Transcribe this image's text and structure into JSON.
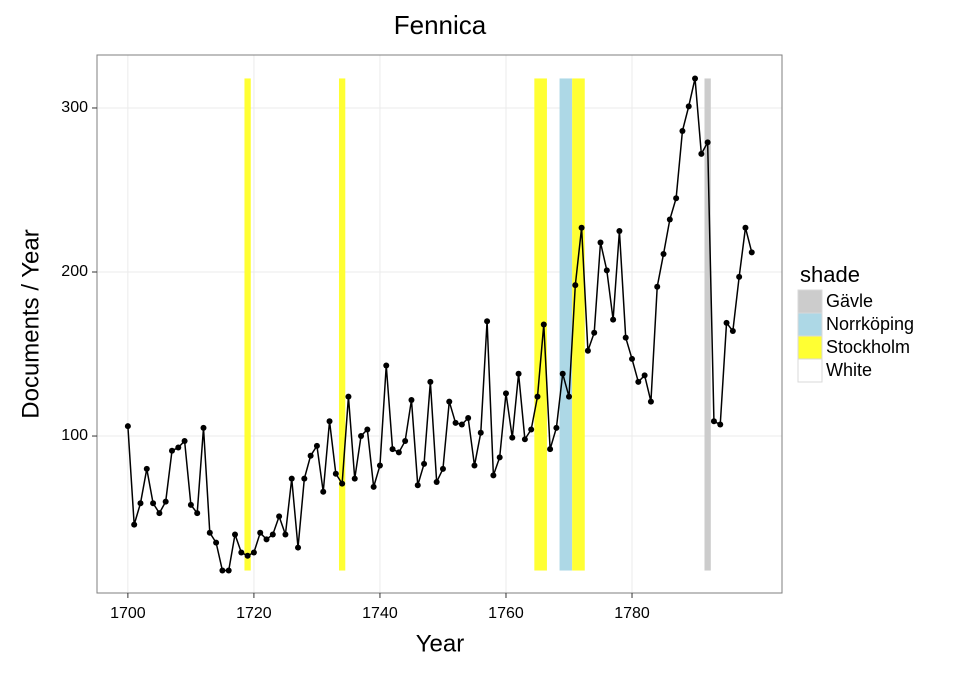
{
  "chart_data": {
    "type": "line",
    "title": "Fennica",
    "x_label": "Year",
    "y_label": "Documents / Year",
    "x": [
      1700,
      1701,
      1702,
      1703,
      1704,
      1705,
      1706,
      1707,
      1708,
      1709,
      1710,
      1711,
      1712,
      1713,
      1714,
      1715,
      1716,
      1717,
      1718,
      1719,
      1720,
      1721,
      1722,
      1723,
      1724,
      1725,
      1726,
      1727,
      1728,
      1729,
      1730,
      1731,
      1732,
      1733,
      1734,
      1735,
      1736,
      1737,
      1738,
      1739,
      1740,
      1741,
      1742,
      1743,
      1744,
      1745,
      1746,
      1747,
      1748,
      1749,
      1750,
      1751,
      1752,
      1753,
      1754,
      1755,
      1756,
      1757,
      1758,
      1759,
      1760,
      1761,
      1762,
      1763,
      1764,
      1765,
      1766,
      1767,
      1768,
      1769,
      1770,
      1771,
      1772,
      1773,
      1774,
      1775,
      1776,
      1777,
      1778,
      1779,
      1780,
      1781,
      1782,
      1783,
      1784,
      1785,
      1786,
      1787,
      1788,
      1789,
      1790,
      1791,
      1792,
      1793,
      1794,
      1795,
      1796,
      1797,
      1798,
      1799
    ],
    "series": [
      {
        "color": "#000000",
        "values": [
          106,
          46,
          59,
          80,
          59,
          53,
          60,
          91,
          93,
          97,
          58,
          53,
          105,
          41,
          35,
          18,
          18,
          40,
          29,
          27,
          29,
          41,
          37,
          40,
          51,
          40,
          74,
          32,
          74,
          88,
          94,
          66,
          109,
          77,
          71,
          124,
          74,
          100,
          104,
          69,
          82,
          143,
          92,
          90,
          97,
          122,
          70,
          83,
          133,
          72,
          80,
          121,
          108,
          107,
          111,
          82,
          102,
          170,
          76,
          87,
          126,
          99,
          138,
          98,
          104,
          124,
          168,
          92,
          105,
          138,
          124,
          192,
          227,
          152,
          163,
          218,
          201,
          171,
          225,
          160,
          147,
          133,
          137,
          121,
          191,
          211,
          232,
          245,
          286,
          301,
          318,
          272,
          279,
          109,
          107,
          169,
          164,
          197,
          227,
          212
        ]
      }
    ],
    "legend_title": "shade",
    "legend": [
      {
        "name": "Gävle",
        "color": "#cccccc"
      },
      {
        "name": "Norrköping",
        "color": "#add8e6"
      },
      {
        "name": "Stockholm",
        "color": "#ffff33"
      },
      {
        "name": "White",
        "color": "#ffffff"
      }
    ],
    "shading": [
      {
        "shade": "Stockholm",
        "x": [
          1718.5,
          1719.5
        ],
        "y": [
          18,
          318
        ]
      },
      {
        "shade": "Stockholm",
        "x": [
          1733.5,
          1734.5
        ],
        "y": [
          18,
          318
        ]
      },
      {
        "shade": "Stockholm",
        "x": [
          1764.5,
          1766.5
        ],
        "y": [
          18,
          318
        ]
      },
      {
        "shade": "Norrköping",
        "x": [
          1768.5,
          1770.5
        ],
        "y": [
          18,
          318
        ]
      },
      {
        "shade": "Stockholm",
        "x": [
          1770.5,
          1772.5
        ],
        "y": [
          18,
          318
        ]
      },
      {
        "shade": "Gävle",
        "x": [
          1791.5,
          1792.5
        ],
        "y": [
          18,
          318
        ]
      }
    ],
    "xlim": [
      1695.1,
      1803.8
    ],
    "ylim": [
      4.3,
      332.3
    ],
    "xticks": [
      1700,
      1720,
      1740,
      1760,
      1780
    ],
    "yticks": [
      100,
      200,
      300
    ],
    "grid": true
  }
}
